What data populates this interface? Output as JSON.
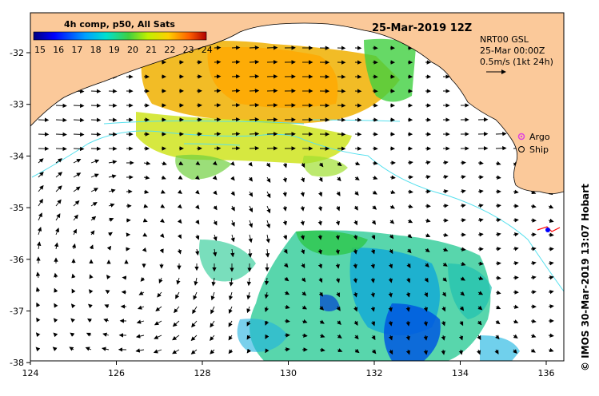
{
  "map": {
    "title": "25-Mar-2019 12Z",
    "colorbar": {
      "label": "4h comp, p50, All Sats",
      "ticks": [
        "15",
        "16",
        "17",
        "18",
        "19",
        "20",
        "21",
        "22",
        "23",
        "24"
      ],
      "range": [
        15,
        24
      ]
    },
    "current_info": {
      "product": "NRT00 GSL",
      "time": "25-Mar 00:00Z",
      "scale_label": "0.5m/s (1kt 24h)"
    },
    "legend": {
      "argo": "Argo",
      "ship": "Ship"
    },
    "longitude_ticks": [
      "124",
      "126",
      "128",
      "130",
      "132",
      "134",
      "136"
    ],
    "latitude_ticks": [
      "-32",
      "-33",
      "-34",
      "-35",
      "-36",
      "-37",
      "-38"
    ],
    "credit": "© IMOS 30-Mar-2019 13:07 Hobart",
    "colors": {
      "land": "#fbc99a",
      "sea": "#ffffff",
      "contour": "#55e0ee",
      "argo": "#e040e0",
      "ship": "#000000"
    }
  }
}
